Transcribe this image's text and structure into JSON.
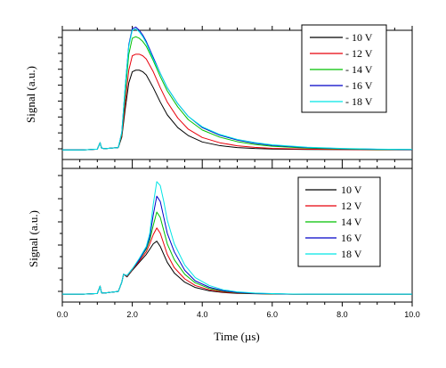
{
  "colors": {
    "black": "#000000",
    "red": "#e8000b",
    "green": "#00c000",
    "blue": "#0000c8",
    "cyan": "#00e5e5"
  },
  "chart_data": [
    {
      "type": "line",
      "ylabel": "Signal (a.u.)",
      "xlabel": "",
      "xlim": [
        0,
        10
      ],
      "ylim": [
        -0.06,
        0.75
      ],
      "y_tick_labels_shown": false,
      "legend": "top-right",
      "x": [
        0,
        0.6,
        1.0,
        1.08,
        1.12,
        1.2,
        1.6,
        1.7,
        1.8,
        1.9,
        2.0,
        2.1,
        2.2,
        2.3,
        2.4,
        2.6,
        2.8,
        3.0,
        3.3,
        3.6,
        4.0,
        4.5,
        5.0,
        5.5,
        6.0,
        7.0,
        8.0,
        9.0,
        10.0
      ],
      "series": [
        {
          "name": "- 10 V",
          "color": "black",
          "values": [
            0,
            0,
            0.005,
            0.045,
            0.012,
            0.008,
            0.015,
            0.08,
            0.26,
            0.42,
            0.49,
            0.5,
            0.5,
            0.49,
            0.47,
            0.39,
            0.3,
            0.22,
            0.14,
            0.09,
            0.05,
            0.027,
            0.015,
            0.009,
            0.006,
            0.003,
            0.002,
            0.001,
            0.001
          ]
        },
        {
          "name": "- 12 V",
          "color": "red",
          "values": [
            0,
            0,
            0.005,
            0.045,
            0.012,
            0.008,
            0.015,
            0.09,
            0.3,
            0.5,
            0.59,
            0.6,
            0.6,
            0.59,
            0.57,
            0.49,
            0.39,
            0.3,
            0.2,
            0.13,
            0.078,
            0.045,
            0.026,
            0.016,
            0.01,
            0.005,
            0.003,
            0.002,
            0.001
          ]
        },
        {
          "name": "- 14 V",
          "color": "green",
          "values": [
            0,
            0,
            0.005,
            0.045,
            0.012,
            0.008,
            0.015,
            0.1,
            0.36,
            0.6,
            0.7,
            0.71,
            0.7,
            0.68,
            0.65,
            0.56,
            0.46,
            0.37,
            0.27,
            0.19,
            0.125,
            0.08,
            0.052,
            0.034,
            0.023,
            0.011,
            0.006,
            0.003,
            0.002
          ]
        },
        {
          "name": "- 16 V",
          "color": "blue",
          "values": [
            0,
            0,
            0.005,
            0.045,
            0.012,
            0.008,
            0.015,
            0.11,
            0.4,
            0.66,
            0.76,
            0.77,
            0.75,
            0.72,
            0.68,
            0.58,
            0.48,
            0.39,
            0.29,
            0.21,
            0.14,
            0.092,
            0.062,
            0.042,
            0.029,
            0.015,
            0.008,
            0.004,
            0.002
          ]
        },
        {
          "name": "- 18 V",
          "color": "cyan",
          "values": [
            0,
            0,
            0.005,
            0.045,
            0.012,
            0.008,
            0.015,
            0.11,
            0.4,
            0.65,
            0.75,
            0.76,
            0.74,
            0.71,
            0.67,
            0.57,
            0.48,
            0.39,
            0.29,
            0.21,
            0.145,
            0.097,
            0.066,
            0.046,
            0.032,
            0.017,
            0.009,
            0.005,
            0.003
          ]
        }
      ]
    },
    {
      "type": "line",
      "ylabel": "Signal (a.u.)",
      "xlabel": "Time (µs)",
      "xlim": [
        0,
        10
      ],
      "ylim": [
        -0.06,
        0.95
      ],
      "x_ticks": [
        0,
        2,
        4,
        6,
        8,
        10
      ],
      "x_tick_labels": [
        "0.0",
        "2.0",
        "4.0",
        "6.0",
        "8.0",
        "10.0"
      ],
      "y_tick_labels_shown": false,
      "legend": "top-right",
      "x": [
        0,
        0.6,
        1.0,
        1.08,
        1.12,
        1.2,
        1.6,
        1.7,
        1.75,
        1.85,
        2.0,
        2.2,
        2.4,
        2.5,
        2.6,
        2.7,
        2.8,
        2.9,
        3.0,
        3.2,
        3.5,
        3.8,
        4.2,
        4.6,
        5.0,
        5.5,
        6.0,
        6.6,
        7.0,
        8.0,
        10.0
      ],
      "series": [
        {
          "name": "10 V",
          "color": "black",
          "values": [
            0,
            0,
            0.005,
            0.06,
            0.01,
            0.008,
            0.02,
            0.09,
            0.15,
            0.13,
            0.18,
            0.24,
            0.3,
            0.34,
            0.38,
            0.4,
            0.36,
            0.3,
            0.24,
            0.16,
            0.09,
            0.05,
            0.025,
            0.012,
            0.006,
            0.003,
            0.001,
            0,
            0,
            0,
            0
          ]
        },
        {
          "name": "12 V",
          "color": "red",
          "values": [
            0,
            0,
            0.005,
            0.06,
            0.01,
            0.008,
            0.02,
            0.09,
            0.15,
            0.135,
            0.185,
            0.25,
            0.32,
            0.38,
            0.45,
            0.5,
            0.46,
            0.38,
            0.3,
            0.2,
            0.115,
            0.065,
            0.033,
            0.016,
            0.008,
            0.004,
            0.002,
            0,
            0,
            0,
            0
          ]
        },
        {
          "name": "14 V",
          "color": "green",
          "values": [
            0,
            0,
            0.005,
            0.06,
            0.01,
            0.008,
            0.02,
            0.09,
            0.15,
            0.14,
            0.19,
            0.26,
            0.34,
            0.41,
            0.52,
            0.62,
            0.58,
            0.48,
            0.38,
            0.26,
            0.15,
            0.085,
            0.043,
            0.022,
            0.011,
            0.005,
            0.002,
            0,
            0,
            0,
            0
          ]
        },
        {
          "name": "16 V",
          "color": "blue",
          "values": [
            0,
            0,
            0.005,
            0.06,
            0.01,
            0.008,
            0.02,
            0.09,
            0.15,
            0.14,
            0.19,
            0.26,
            0.35,
            0.43,
            0.6,
            0.74,
            0.7,
            0.58,
            0.46,
            0.32,
            0.18,
            0.1,
            0.052,
            0.026,
            0.013,
            0.006,
            0.003,
            0,
            0,
            0,
            0
          ]
        },
        {
          "name": "18 V",
          "color": "cyan",
          "values": [
            0,
            0,
            0.005,
            0.06,
            0.01,
            0.008,
            0.02,
            0.09,
            0.15,
            0.14,
            0.19,
            0.27,
            0.36,
            0.46,
            0.68,
            0.85,
            0.82,
            0.7,
            0.56,
            0.38,
            0.22,
            0.125,
            0.065,
            0.033,
            0.017,
            0.008,
            0.004,
            0.001,
            0,
            0,
            0
          ]
        }
      ]
    }
  ]
}
